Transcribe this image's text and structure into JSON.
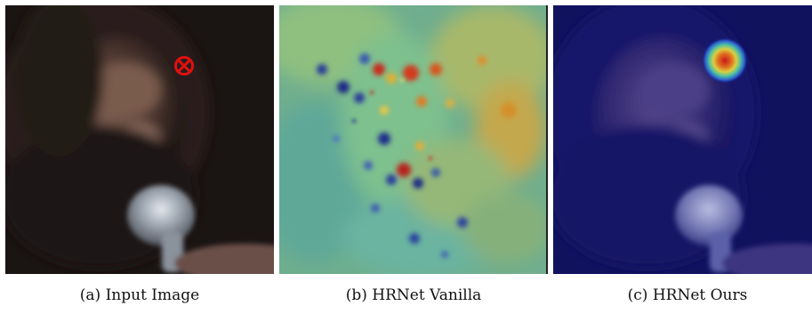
{
  "figure": {
    "panels": [
      {
        "caption": "(a) Input Image"
      },
      {
        "caption": "(b) HRNet Vanilla"
      },
      {
        "caption": "(c) HRNet Ours"
      }
    ]
  },
  "colors": {
    "marker": "#e01010",
    "heat_hot": "#c81818",
    "heat_cold": "#10106a"
  }
}
